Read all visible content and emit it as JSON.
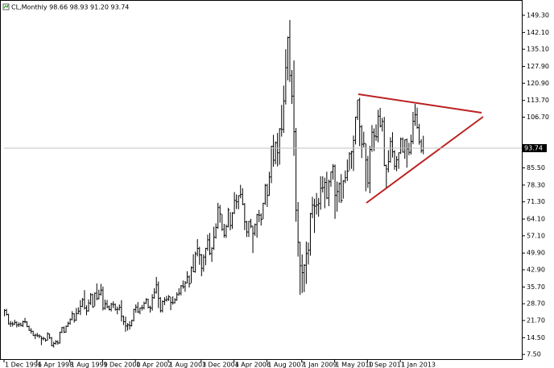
{
  "chart_data": {
    "type": "ohlc",
    "header": "CL,Monthly  98.66 98.93 91.20 93.74",
    "color": "#000000",
    "categories": [
      "1 Dec 1996",
      null,
      null,
      null,
      null,
      null,
      null,
      null,
      null,
      null,
      null,
      null,
      null,
      null,
      null,
      null,
      "1 Apr 1998",
      null,
      null,
      null,
      null,
      null,
      null,
      null,
      null,
      null,
      null,
      null,
      null,
      null,
      null,
      null,
      "1 Aug 1999",
      null,
      null,
      null,
      null,
      null,
      null,
      null,
      null,
      null,
      null,
      null,
      null,
      null,
      null,
      null,
      "1 Dec 2000",
      null,
      null,
      null,
      null,
      null,
      null,
      null,
      null,
      null,
      null,
      null,
      null,
      null,
      null,
      null,
      "1 Apr 2002",
      null,
      null,
      null,
      null,
      null,
      null,
      null,
      null,
      null,
      null,
      null,
      null,
      null,
      null,
      null,
      "1 Aug 2003",
      null,
      null,
      null,
      null,
      null,
      null,
      null,
      null,
      null,
      null,
      null,
      null,
      null,
      null,
      null,
      "1 Dec 2004",
      null,
      null,
      null,
      null,
      null,
      null,
      null,
      null,
      null,
      null,
      null,
      null,
      null,
      null,
      null,
      "1 Apr 2006",
      null,
      null,
      null,
      null,
      null,
      null,
      null,
      null,
      null,
      null,
      null,
      null,
      null,
      null,
      null,
      "1 Aug 2007",
      null,
      null,
      null,
      null,
      null,
      null,
      null,
      null,
      null,
      null,
      null,
      null,
      null,
      null,
      null,
      null,
      "1 Jan 2009",
      null,
      null,
      null,
      null,
      null,
      null,
      null,
      null,
      null,
      null,
      null,
      null,
      null,
      null,
      null,
      "1 May 2010",
      null,
      null,
      null,
      null,
      null,
      null,
      null,
      null,
      null,
      null,
      null,
      null,
      null,
      null,
      null,
      "1 Sep 2011",
      null,
      null,
      null,
      null,
      null,
      null,
      null,
      null,
      null,
      null,
      null,
      null,
      null,
      null,
      null,
      "1 Jan 2013",
      null,
      null,
      null,
      null,
      null,
      null,
      null,
      null,
      null,
      null,
      null
    ],
    "high": [
      26.5,
      26.6,
      24.5,
      21.5,
      21.2,
      22.0,
      21.3,
      20.9,
      20.8,
      21.6,
      22.8,
      21.4,
      19.6,
      18.5,
      17.4,
      16.2,
      16.5,
      15.9,
      15.2,
      14.9,
      14.2,
      16.8,
      16.2,
      14.8,
      12.8,
      13.5,
      13.4,
      17.0,
      19.0,
      19.2,
      19.6,
      21.2,
      22.6,
      25.6,
      24.8,
      26.9,
      27.2,
      30.2,
      31.1,
      34.4,
      28.0,
      30.5,
      33.2,
      32.9,
      33.4,
      37.2,
      34.6,
      37.0,
      35.9,
      30.4,
      30.3,
      28.0,
      29.1,
      29.7,
      28.8,
      27.5,
      28.4,
      30.2,
      23.8,
      23.3,
      20.6,
      21.4,
      22.0,
      26.6,
      28.4,
      29.4,
      27.1,
      28.2,
      29.6,
      31.0,
      30.8,
      27.9,
      32.7,
      35.2,
      39.9,
      38.0,
      31.5,
      30.1,
      31.4,
      32.0,
      32.3,
      31.5,
      31.8,
      31.0,
      33.5,
      35.2,
      36.5,
      38.4,
      38.2,
      42.3,
      40.6,
      44.3,
      49.4,
      50.5,
      55.7,
      52.5,
      49.5,
      49.3,
      52.1,
      57.6,
      58.3,
      52.3,
      60.9,
      62.3,
      70.9,
      70.0,
      66.1,
      62.1,
      61.8,
      68.8,
      67.1,
      67.0,
      75.4,
      74.4,
      74.0,
      78.4,
      77.0,
      70.8,
      63.4,
      63.3,
      64.2,
      61.3,
      62.2,
      66.3,
      67.9,
      66.5,
      70.9,
      78.8,
      78.8,
      83.9,
      94.7,
      99.3,
      96.6,
      100.1,
      102.1,
      111.8,
      119.9,
      135.1,
      140.4,
      147.3,
      126.4,
      130.4,
      102.2,
      71.2,
      54.6,
      49.3,
      45.3,
      54.7,
      54.3,
      66.7,
      73.4,
      72.6,
      75.0,
      72.9,
      82.0,
      82.0,
      81.4,
      83.9,
      80.6,
      83.9,
      87.1,
      86.9,
      79.8,
      79.4,
      82.9,
      80.4,
      84.4,
      89.0,
      92.1,
      92.6,
      99.0,
      106.9,
      113.9,
      114.8,
      103.4,
      100.6,
      95.7,
      90.5,
      94.7,
      103.4,
      102.0,
      103.7,
      109.8,
      110.6,
      106.4,
      106.8,
      86.9,
      92.9,
      98.3,
      100.4,
      92.9,
      90.4,
      91.9,
      98.2,
      98.2,
      97.4,
      97.8,
      96.0,
      99.4,
      108.9,
      112.2,
      110.7,
      103.9,
      97.5,
      98.93
    ],
    "low": [
      23.5,
      23.8,
      20.0,
      19.0,
      19.2,
      19.8,
      18.8,
      19.0,
      19.2,
      19.0,
      20.5,
      18.9,
      17.4,
      16.2,
      15.3,
      13.9,
      14.8,
      14.3,
      11.4,
      13.3,
      12.8,
      13.3,
      14.0,
      10.9,
      10.4,
      11.6,
      11.6,
      12.0,
      16.4,
      16.5,
      16.6,
      19.0,
      19.9,
      21.8,
      20.8,
      21.5,
      24.3,
      24.0,
      27.3,
      26.3,
      23.9,
      25.4,
      28.2,
      27.0,
      27.6,
      30.2,
      30.5,
      32.1,
      25.9,
      26.2,
      26.8,
      25.9,
      25.5,
      26.9,
      25.8,
      24.3,
      25.9,
      21.3,
      19.8,
      17.0,
      17.5,
      17.9,
      19.2,
      21.3,
      24.9,
      24.8,
      24.3,
      25.9,
      26.3,
      28.6,
      26.8,
      25.0,
      25.8,
      30.8,
      32.9,
      26.9,
      25.0,
      25.1,
      28.1,
      29.6,
      29.9,
      26.0,
      28.3,
      28.8,
      29.9,
      32.1,
      32.2,
      35.0,
      33.7,
      37.2,
      35.5,
      37.3,
      41.9,
      41.7,
      48.5,
      45.0,
      40.2,
      42.1,
      44.8,
      50.8,
      49.0,
      46.2,
      51.2,
      55.9,
      60.0,
      62.6,
      59.2,
      56.3,
      56.2,
      60.6,
      59.4,
      60.0,
      66.2,
      68.3,
      68.2,
      72.8,
      69.9,
      59.5,
      56.6,
      56.6,
      60.3,
      49.9,
      57.1,
      56.3,
      62.8,
      61.4,
      64.1,
      70.0,
      69.2,
      73.8,
      79.1,
      86.0,
      87.0,
      86.1,
      86.8,
      98.6,
      100.1,
      112.0,
      122.1,
      121.4,
      112.2,
      90.5,
      63.0,
      48.4,
      32.4,
      33.2,
      33.6,
      37.0,
      45.1,
      48.8,
      64.5,
      58.3,
      66.0,
      65.1,
      68.0,
      75.2,
      68.6,
      72.4,
      69.5,
      77.6,
      80.6,
      64.2,
      67.2,
      71.0,
      70.8,
      72.6,
      79.1,
      80.0,
      84.4,
      85.1,
      84.2,
      95.3,
      105.5,
      94.6,
      89.6,
      94.1,
      75.7,
      77.1,
      74.9,
      92.2,
      92.5,
      96.8,
      96.2,
      102.4,
      100.7,
      86.2,
      77.3,
      83.6,
      87.7,
      89.8,
      84.7,
      84.1,
      85.1,
      91.3,
      91.9,
      89.3,
      85.6,
      90.8,
      91.1,
      95.4,
      103.1,
      101.9,
      95.2,
      91.8,
      91.2
    ],
    "close": [
      25.9,
      24.2,
      20.3,
      20.4,
      20.2,
      20.9,
      19.8,
      20.1,
      19.6,
      21.2,
      21.1,
      19.2,
      17.6,
      17.2,
      15.4,
      15.6,
      15.3,
      15.2,
      14.2,
      14.2,
      13.4,
      16.1,
      14.4,
      11.2,
      12.1,
      12.8,
      12.3,
      16.8,
      18.7,
      16.8,
      19.3,
      20.5,
      22.1,
      24.5,
      21.8,
      24.6,
      25.6,
      27.6,
      30.4,
      26.9,
      25.7,
      29.0,
      32.5,
      27.4,
      33.1,
      30.8,
      32.7,
      34.4,
      26.8,
      28.7,
      27.4,
      26.3,
      28.5,
      28.4,
      26.3,
      26.4,
      27.2,
      23.4,
      21.2,
      19.4,
      19.8,
      19.5,
      21.7,
      26.3,
      27.3,
      25.3,
      26.9,
      27.0,
      28.9,
      30.5,
      27.2,
      26.9,
      31.2,
      33.5,
      36.6,
      31.0,
      25.8,
      29.6,
      30.2,
      30.5,
      31.6,
      29.2,
      29.1,
      30.4,
      32.5,
      33.1,
      36.2,
      35.8,
      37.4,
      39.9,
      37.1,
      43.8,
      42.1,
      49.6,
      51.8,
      49.1,
      43.5,
      48.2,
      51.8,
      55.4,
      49.7,
      51.9,
      56.5,
      60.6,
      68.9,
      66.2,
      59.8,
      57.3,
      61.0,
      67.9,
      61.4,
      66.6,
      71.9,
      71.3,
      73.9,
      74.4,
      70.3,
      62.9,
      58.7,
      63.1,
      61.1,
      58.1,
      61.8,
      65.9,
      65.7,
      64.0,
      70.7,
      78.2,
      74.0,
      81.7,
      94.5,
      88.7,
      96.0,
      91.8,
      101.8,
      101.6,
      113.5,
      127.4,
      140.0,
      124.1,
      115.5,
      100.6,
      67.8,
      54.4,
      44.6,
      41.7,
      44.8,
      49.7,
      51.1,
      66.3,
      69.9,
      69.5,
      70.0,
      70.6,
      77.0,
      77.3,
      79.4,
      72.9,
      79.7,
      83.8,
      86.2,
      74.0,
      75.6,
      78.9,
      71.9,
      80.0,
      81.4,
      84.1,
      91.4,
      92.2,
      97.0,
      106.7,
      113.9,
      102.7,
      95.4,
      95.7,
      88.8,
      79.2,
      93.2,
      100.4,
      98.8,
      98.5,
      107.1,
      103.0,
      104.9,
      86.5,
      85.0,
      88.1,
      96.5,
      92.2,
      86.2,
      88.9,
      91.8,
      97.5,
      92.1,
      97.2,
      93.5,
      92.0,
      96.6,
      105.0,
      107.7,
      102.3,
      96.4,
      92.7,
      93.74
    ],
    "ylim": [
      5.2,
      154.0
    ],
    "yticks": [
      {
        "value": 7.5,
        "label": "7.50"
      },
      {
        "value": 14.5,
        "label": "14.50"
      },
      {
        "value": 21.7,
        "label": "21.70"
      },
      {
        "value": 28.7,
        "label": "28.70"
      },
      {
        "value": 35.7,
        "label": "35.70"
      },
      {
        "value": 42.9,
        "label": "42.90"
      },
      {
        "value": 49.9,
        "label": "49.90"
      },
      {
        "value": 57.1,
        "label": "57.10"
      },
      {
        "value": 64.1,
        "label": "64.10"
      },
      {
        "value": 71.3,
        "label": "71.30"
      },
      {
        "value": 78.3,
        "label": "78.30"
      },
      {
        "value": 85.5,
        "label": "85.50"
      },
      {
        "value": 106.7,
        "label": "106.70"
      },
      {
        "value": 113.7,
        "label": "113.70"
      },
      {
        "value": 120.9,
        "label": "120.90"
      },
      {
        "value": 127.9,
        "label": "127.90"
      },
      {
        "value": 135.1,
        "label": "135.10"
      },
      {
        "value": 142.1,
        "label": "142.10"
      },
      {
        "value": 149.3,
        "label": "149.30"
      }
    ]
  }
}
